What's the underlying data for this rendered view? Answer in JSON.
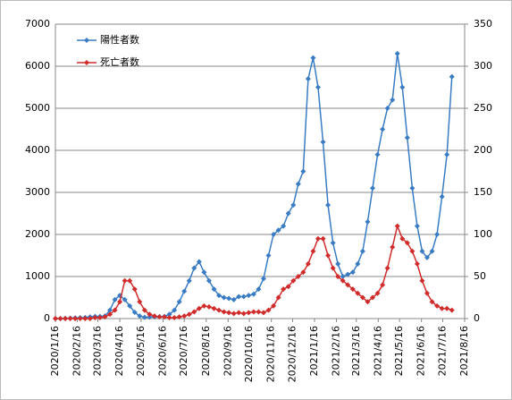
{
  "chart_data": {
    "type": "line",
    "x": [
      "2020/1/16",
      "2020/1/23",
      "2020/1/30",
      "2020/2/6",
      "2020/2/13",
      "2020/2/20",
      "2020/2/27",
      "2020/3/5",
      "2020/3/12",
      "2020/3/19",
      "2020/3/26",
      "2020/4/2",
      "2020/4/9",
      "2020/4/16",
      "2020/4/23",
      "2020/4/30",
      "2020/5/7",
      "2020/5/14",
      "2020/5/21",
      "2020/5/28",
      "2020/6/4",
      "2020/6/11",
      "2020/6/18",
      "2020/6/25",
      "2020/7/2",
      "2020/7/9",
      "2020/7/16",
      "2020/7/23",
      "2020/7/30",
      "2020/8/6",
      "2020/8/13",
      "2020/8/20",
      "2020/8/27",
      "2020/9/3",
      "2020/9/10",
      "2020/9/17",
      "2020/9/24",
      "2020/10/1",
      "2020/10/8",
      "2020/10/15",
      "2020/10/22",
      "2020/10/29",
      "2020/11/5",
      "2020/11/12",
      "2020/11/19",
      "2020/11/26",
      "2020/12/3",
      "2020/12/10",
      "2020/12/17",
      "2020/12/24",
      "2020/12/31",
      "2021/1/7",
      "2021/1/14",
      "2021/1/21",
      "2021/1/28",
      "2021/2/4",
      "2021/2/11",
      "2021/2/18",
      "2021/2/25",
      "2021/3/4",
      "2021/3/11",
      "2021/3/18",
      "2021/3/25",
      "2021/4/1",
      "2021/4/8",
      "2021/4/15",
      "2021/4/22",
      "2021/4/29",
      "2021/5/6",
      "2021/5/13",
      "2021/5/20",
      "2021/5/27",
      "2021/6/3",
      "2021/6/10",
      "2021/6/17",
      "2021/6/24",
      "2021/7/1",
      "2021/7/8",
      "2021/7/15",
      "2021/7/22",
      "2021/7/29"
    ],
    "series": [
      {
        "name": "陽性者数",
        "color": "#3a7cc4",
        "axis": "y",
        "values": [
          0,
          0,
          5,
          10,
          15,
          20,
          25,
          40,
          50,
          50,
          60,
          200,
          450,
          550,
          450,
          300,
          150,
          60,
          30,
          35,
          40,
          45,
          50,
          100,
          200,
          400,
          650,
          900,
          1200,
          1350,
          1100,
          900,
          700,
          550,
          500,
          480,
          450,
          520,
          520,
          550,
          580,
          700,
          950,
          1500,
          2000,
          2100,
          2200,
          2500,
          2700,
          3200,
          3500,
          5700,
          6200,
          5500,
          4200,
          2700,
          1800,
          1300,
          1000,
          1050,
          1100,
          1300,
          1600,
          2300,
          3100,
          3900,
          4500,
          5000,
          5200,
          6300,
          5500,
          4300,
          3100,
          2200,
          1600,
          1450,
          1600,
          2000,
          2900,
          3900,
          5750
        ]
      },
      {
        "name": "死亡者数",
        "color": "#d02c2c",
        "axis": "y2",
        "values": [
          0,
          0,
          0,
          0,
          0,
          0,
          0,
          0,
          1,
          1,
          2,
          5,
          10,
          20,
          45,
          45,
          35,
          20,
          10,
          5,
          3,
          2,
          2,
          1,
          1,
          2,
          3,
          5,
          8,
          12,
          15,
          14,
          12,
          10,
          8,
          7,
          6,
          7,
          6,
          7,
          8,
          8,
          7,
          10,
          15,
          25,
          35,
          38,
          45,
          50,
          55,
          65,
          80,
          95,
          95,
          75,
          60,
          50,
          45,
          40,
          35,
          30,
          25,
          20,
          25,
          30,
          40,
          60,
          85,
          110,
          95,
          90,
          80,
          65,
          45,
          30,
          20,
          15,
          12,
          12,
          10
        ]
      }
    ],
    "xlim": [
      "2020/1/16",
      "2021/8/16"
    ],
    "xticks": [
      "2020/1/16",
      "2020/2/16",
      "2020/3/16",
      "2020/4/16",
      "2020/5/16",
      "2020/6/16",
      "2020/7/16",
      "2020/8/16",
      "2020/9/16",
      "2020/10/16",
      "2020/11/16",
      "2020/12/16",
      "2021/1/16",
      "2021/2/16",
      "2021/3/16",
      "2021/4/16",
      "2021/5/16",
      "2021/6/16",
      "2021/7/16",
      "2021/8/16"
    ],
    "ylim": [
      0,
      7000
    ],
    "yticks": [
      0,
      1000,
      2000,
      3000,
      4000,
      5000,
      6000,
      7000
    ],
    "y2lim": [
      0,
      350
    ],
    "y2ticks": [
      0,
      50,
      100,
      150,
      200,
      250,
      300,
      350
    ],
    "grid": true,
    "legend": "upper left"
  }
}
